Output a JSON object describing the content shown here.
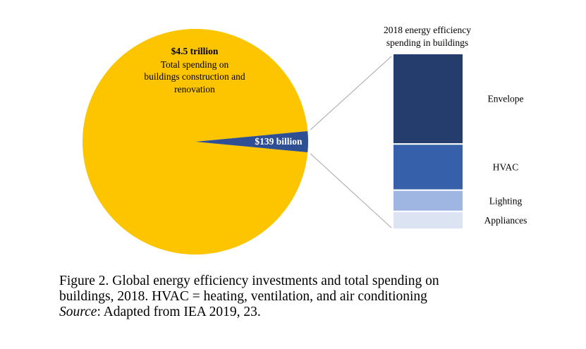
{
  "chart_data": {
    "type": "pie-of-bar",
    "pie": {
      "slices": [
        {
          "name": "Total spending on buildings construction and renovation",
          "value": 4500,
          "unit": "$ billion",
          "color": "#fcc500"
        },
        {
          "name": "Energy efficiency spending",
          "value": 139,
          "unit": "$ billion",
          "color": "#2e4f93"
        }
      ],
      "main_label": {
        "value": "$4.5 trillion",
        "lines": [
          "Total spending on",
          "buildings construction and",
          "renovation"
        ]
      },
      "slice_label": "$139 billion"
    },
    "bar": {
      "title_lines": [
        "2018 energy efficiency",
        "spending in buildings"
      ],
      "segments": [
        {
          "name": "Envelope",
          "share": 0.51,
          "color": "#243d6d"
        },
        {
          "name": "HVAC",
          "share": 0.26,
          "color": "#3760aa"
        },
        {
          "name": "Lighting",
          "share": 0.12,
          "color": "#9fb6e2"
        },
        {
          "name": "Appliances",
          "share": 0.1,
          "color": "#dce3f3"
        }
      ]
    }
  },
  "caption": {
    "line1": "Figure 2. Global energy efficiency investments and total spending on",
    "line2": "buildings, 2018. HVAC = heating, ventilation, and air conditioning",
    "source_label": "Source",
    "source_text": ": Adapted from IEA 2019, 23."
  }
}
